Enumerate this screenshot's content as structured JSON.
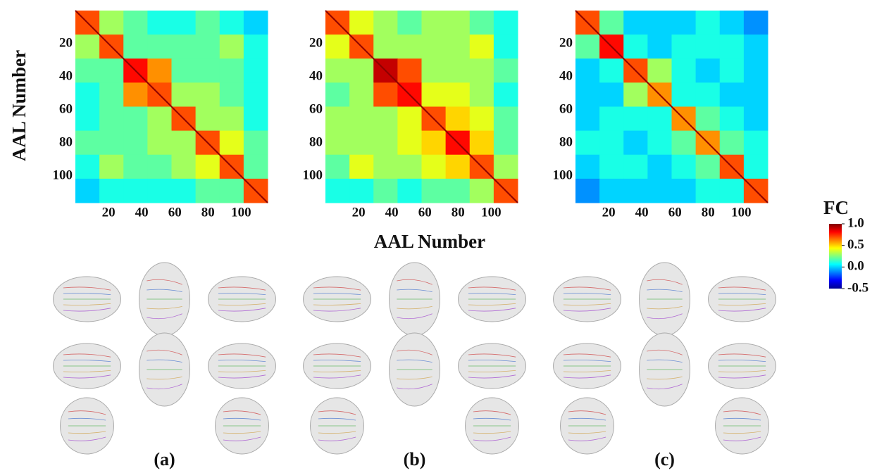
{
  "chart_data": [
    {
      "type": "heatmap",
      "caption": "(a)",
      "xlim": [
        0,
        116
      ],
      "ylim": [
        0,
        116
      ],
      "xticks": [
        20,
        40,
        60,
        80,
        100
      ],
      "yticks": [
        20,
        40,
        60,
        80,
        100
      ],
      "values": [
        [
          0.7,
          0.3,
          0.2,
          0.1,
          0.1,
          0.2,
          0.1,
          0.0
        ],
        [
          0.3,
          0.7,
          0.2,
          0.2,
          0.2,
          0.2,
          0.3,
          0.1
        ],
        [
          0.2,
          0.2,
          0.8,
          0.6,
          0.2,
          0.2,
          0.2,
          0.1
        ],
        [
          0.1,
          0.2,
          0.6,
          0.7,
          0.3,
          0.3,
          0.2,
          0.1
        ],
        [
          0.1,
          0.2,
          0.2,
          0.3,
          0.7,
          0.3,
          0.3,
          0.1
        ],
        [
          0.2,
          0.2,
          0.2,
          0.3,
          0.3,
          0.7,
          0.4,
          0.2
        ],
        [
          0.1,
          0.3,
          0.2,
          0.2,
          0.3,
          0.4,
          0.7,
          0.2
        ],
        [
          0.0,
          0.1,
          0.1,
          0.1,
          0.1,
          0.2,
          0.2,
          0.7
        ]
      ]
    },
    {
      "type": "heatmap",
      "caption": "(b)",
      "xlim": [
        0,
        116
      ],
      "ylim": [
        0,
        116
      ],
      "xticks": [
        20,
        40,
        60,
        80,
        100
      ],
      "yticks": [
        20,
        40,
        60,
        80,
        100
      ],
      "values": [
        [
          0.7,
          0.4,
          0.3,
          0.2,
          0.3,
          0.3,
          0.2,
          0.1
        ],
        [
          0.4,
          0.7,
          0.3,
          0.3,
          0.3,
          0.3,
          0.4,
          0.1
        ],
        [
          0.3,
          0.3,
          0.9,
          0.7,
          0.3,
          0.3,
          0.3,
          0.2
        ],
        [
          0.2,
          0.3,
          0.7,
          0.8,
          0.4,
          0.4,
          0.3,
          0.1
        ],
        [
          0.3,
          0.3,
          0.3,
          0.4,
          0.7,
          0.5,
          0.4,
          0.2
        ],
        [
          0.3,
          0.3,
          0.3,
          0.4,
          0.5,
          0.8,
          0.5,
          0.2
        ],
        [
          0.2,
          0.4,
          0.3,
          0.3,
          0.4,
          0.5,
          0.7,
          0.3
        ],
        [
          0.1,
          0.1,
          0.2,
          0.1,
          0.2,
          0.2,
          0.3,
          0.7
        ]
      ]
    },
    {
      "type": "heatmap",
      "caption": "(c)",
      "xlim": [
        0,
        116
      ],
      "ylim": [
        0,
        116
      ],
      "xticks": [
        20,
        40,
        60,
        80,
        100
      ],
      "yticks": [
        20,
        40,
        60,
        80,
        100
      ],
      "values": [
        [
          0.7,
          0.2,
          0.0,
          0.0,
          0.0,
          0.1,
          0.0,
          -0.1
        ],
        [
          0.2,
          0.8,
          0.1,
          0.0,
          0.1,
          0.1,
          0.1,
          0.0
        ],
        [
          0.0,
          0.1,
          0.7,
          0.3,
          0.1,
          0.0,
          0.1,
          0.0
        ],
        [
          0.0,
          0.0,
          0.3,
          0.6,
          0.1,
          0.1,
          0.0,
          0.0
        ],
        [
          0.0,
          0.1,
          0.1,
          0.1,
          0.6,
          0.2,
          0.1,
          0.0
        ],
        [
          0.1,
          0.1,
          0.0,
          0.1,
          0.2,
          0.6,
          0.2,
          0.1
        ],
        [
          0.0,
          0.1,
          0.1,
          0.0,
          0.1,
          0.2,
          0.7,
          0.1
        ],
        [
          -0.1,
          0.0,
          0.0,
          0.0,
          0.0,
          0.1,
          0.1,
          0.7
        ]
      ]
    }
  ],
  "shared_axes": {
    "xlabel": "AAL Number",
    "ylabel": "AAL Number"
  },
  "colorbar": {
    "label": "FC",
    "lim": [
      -0.5,
      1.0
    ],
    "ticks": [
      {
        "value": 1.0,
        "label": "1.0"
      },
      {
        "value": 0.5,
        "label": "0.5"
      },
      {
        "value": 0.0,
        "label": "0.0"
      },
      -0.5
    ]
  }
}
